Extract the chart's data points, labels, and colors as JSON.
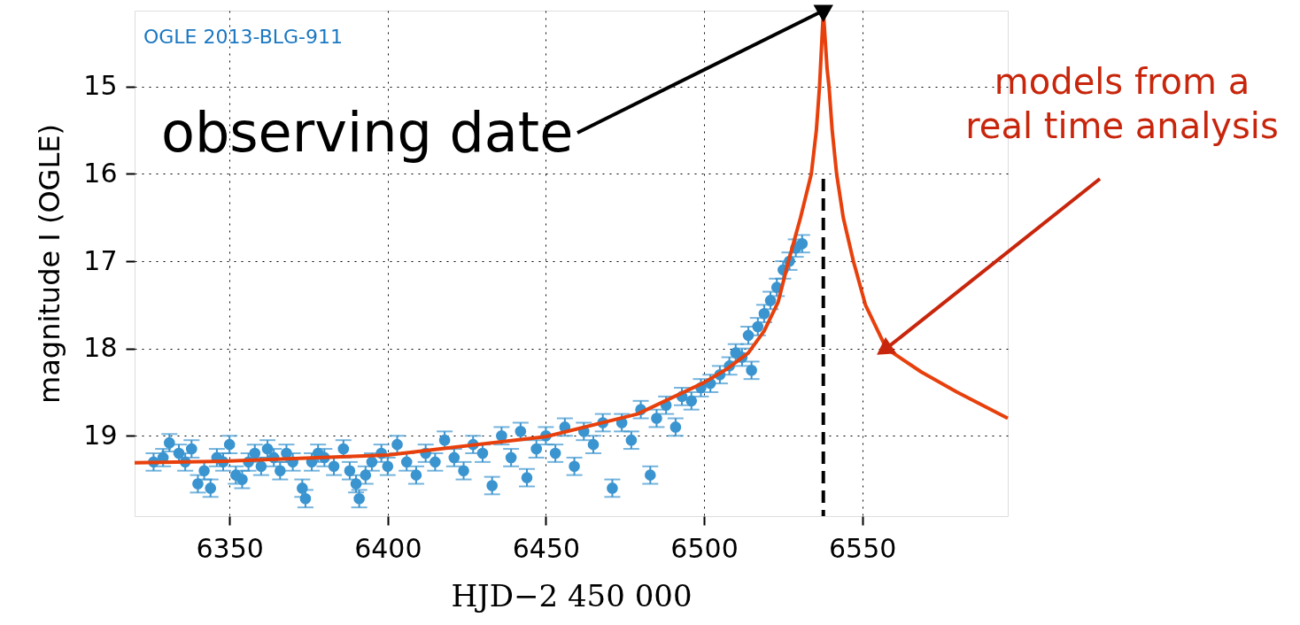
{
  "chart_data": {
    "type": "scatter",
    "xlabel": "HJD−2 450 000",
    "ylabel": "magnitude I (OGLE)",
    "xlim": [
      6320,
      6596
    ],
    "xticks": [
      6350,
      6400,
      6450,
      6500,
      6550
    ],
    "ylim": [
      19.92,
      14.13
    ],
    "yticks": [
      15,
      16,
      17,
      18,
      19
    ],
    "grid": true,
    "series": [
      {
        "color": "#3a94cf",
        "marker": "circle",
        "x": [
          6326,
          6329,
          6331,
          6334,
          6336,
          6338,
          6340,
          6342,
          6344,
          6346,
          6348,
          6350,
          6352,
          6354,
          6356,
          6358,
          6360,
          6362,
          6364,
          6366,
          6368,
          6370,
          6373,
          6374,
          6376,
          6378,
          6380,
          6383,
          6386,
          6388,
          6390,
          6391,
          6393,
          6395,
          6398,
          6400,
          6403,
          6406,
          6409,
          6412,
          6415,
          6418,
          6421,
          6424,
          6427,
          6430,
          6433,
          6436,
          6439,
          6442,
          6444,
          6447,
          6450,
          6453,
          6456,
          6459,
          6462,
          6465,
          6468,
          6471,
          6474,
          6477,
          6480,
          6483,
          6485,
          6488,
          6491,
          6493,
          6496,
          6499,
          6502,
          6505,
          6508,
          6510,
          6512,
          6514,
          6515,
          6517,
          6519,
          6521,
          6523,
          6525,
          6527,
          6529,
          6531
        ],
        "values": [
          19.3,
          19.25,
          19.08,
          19.2,
          19.3,
          19.15,
          19.55,
          19.4,
          19.6,
          19.25,
          19.3,
          19.1,
          19.45,
          19.5,
          19.3,
          19.2,
          19.35,
          19.15,
          19.25,
          19.4,
          19.2,
          19.3,
          19.6,
          19.72,
          19.3,
          19.2,
          19.25,
          19.35,
          19.15,
          19.4,
          19.55,
          19.72,
          19.45,
          19.3,
          19.2,
          19.35,
          19.1,
          19.3,
          19.45,
          19.2,
          19.3,
          19.05,
          19.25,
          19.4,
          19.1,
          19.2,
          19.57,
          19.0,
          19.25,
          18.95,
          19.48,
          19.15,
          19.0,
          19.2,
          18.9,
          19.35,
          18.95,
          19.1,
          18.85,
          19.6,
          18.85,
          19.05,
          18.7,
          19.45,
          18.8,
          18.65,
          18.9,
          18.55,
          18.6,
          18.45,
          18.4,
          18.3,
          18.2,
          18.05,
          18.1,
          17.85,
          18.25,
          17.75,
          17.6,
          17.45,
          17.3,
          17.1,
          17.0,
          16.85,
          16.8
        ],
        "errors": [
          0.1,
          0.1,
          0.1,
          0.1,
          0.1,
          0.1,
          0.1,
          0.1,
          0.1,
          0.1,
          0.1,
          0.1,
          0.1,
          0.1,
          0.1,
          0.1,
          0.1,
          0.1,
          0.1,
          0.1,
          0.1,
          0.1,
          0.1,
          0.1,
          0.1,
          0.1,
          0.1,
          0.1,
          0.1,
          0.1,
          0.1,
          0.1,
          0.1,
          0.1,
          0.1,
          0.1,
          0.1,
          0.1,
          0.1,
          0.1,
          0.1,
          0.1,
          0.1,
          0.1,
          0.1,
          0.1,
          0.1,
          0.1,
          0.1,
          0.1,
          0.1,
          0.1,
          0.1,
          0.1,
          0.1,
          0.1,
          0.1,
          0.1,
          0.1,
          0.1,
          0.1,
          0.1,
          0.1,
          0.1,
          0.1,
          0.1,
          0.1,
          0.1,
          0.1,
          0.1,
          0.1,
          0.1,
          0.1,
          0.1,
          0.1,
          0.1,
          0.1,
          0.1,
          0.1,
          0.1,
          0.1,
          0.1,
          0.1,
          0.1,
          0.1
        ]
      },
      {
        "type": "line",
        "color": "#e8400c",
        "line_style": "solid",
        "marker": "none",
        "x": [
          6320,
          6350,
          6400,
          6450,
          6479,
          6500,
          6507,
          6514,
          6519,
          6523.4,
          6526.7,
          6530.5,
          6533.9,
          6535.5,
          6536.5,
          6537.7,
          6538.9,
          6539.5,
          6540.5,
          6541.9,
          6544,
          6547.2,
          6551,
          6557.6,
          6568.7,
          6580,
          6596
        ],
        "values": [
          19.31,
          19.29,
          19.22,
          19.01,
          18.75,
          18.39,
          18.24,
          18.05,
          17.8,
          17.47,
          17.0,
          16.5,
          16.0,
          15.5,
          15.0,
          14.14,
          14.8,
          15.0,
          15.5,
          16.0,
          16.5,
          17.0,
          17.5,
          18.0,
          18.27,
          18.5,
          18.8
        ]
      }
    ],
    "ref_lines": [
      {
        "axis": "x",
        "value": 6537.7,
        "color": "#000000",
        "line_style": "dashed"
      }
    ],
    "annotations": [
      "OGLE 2013-BLG-911",
      {
        "text": "observing date",
        "x": 6537.7,
        "y": 14.13
      },
      {
        "text": "models from a\nreal time analysis",
        "x": 6557.6,
        "y": 18.0
      }
    ]
  }
}
